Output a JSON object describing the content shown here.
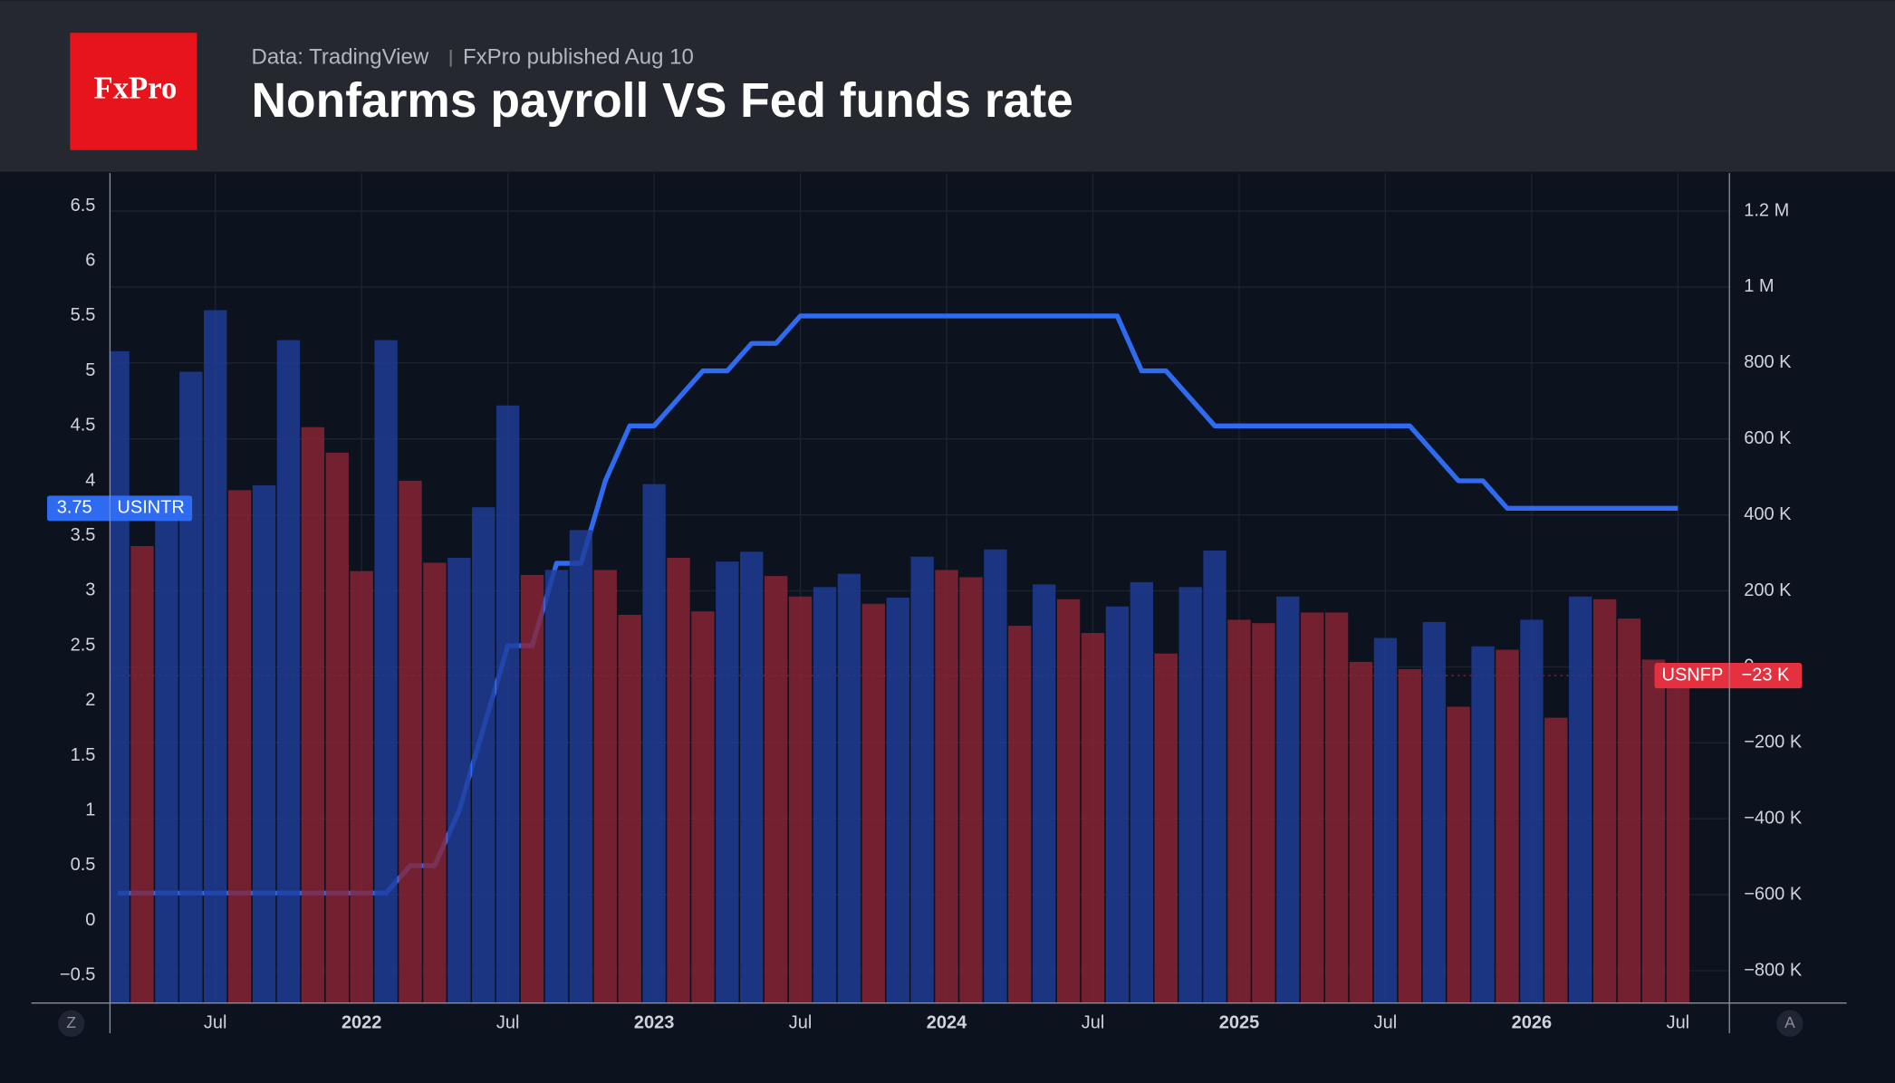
{
  "header": {
    "logo": "FxPro",
    "source": "Data: TradingView",
    "published": "FxPro published Aug 10",
    "title": "Nonfarms payroll VS Fed funds rate"
  },
  "chart_data": {
    "type": "bar",
    "categories": [
      null,
      null,
      null,
      null,
      "Jul",
      null,
      null,
      null,
      null,
      null,
      "2022",
      null,
      null,
      null,
      null,
      null,
      "Jul",
      null,
      null,
      null,
      null,
      null,
      "2023",
      null,
      null,
      null,
      null,
      null,
      "Jul",
      null,
      null,
      null,
      null,
      null,
      "2024",
      null,
      null,
      null,
      null,
      null,
      "Jul",
      null,
      null,
      null,
      null,
      null,
      "2025",
      null,
      null,
      null,
      null,
      null,
      "Jul",
      null,
      null,
      null,
      null,
      null,
      "2026",
      null,
      null,
      null,
      null,
      null,
      "Jul"
    ],
    "ylim": [
      -0.75,
      6.8
    ],
    "yticks": [
      {
        "value": -0.5,
        "label": "−0.5"
      },
      0,
      0.5,
      1,
      1.5,
      2,
      2.5,
      3,
      3.5,
      4,
      4.5,
      5,
      5.5,
      6,
      6.5
    ],
    "y2lim": [
      -885000,
      1300000
    ],
    "y2ticks": [
      {
        "value": -800000,
        "label": "−800 K"
      },
      {
        "value": -600000,
        "label": "−600 K"
      },
      {
        "value": -400000,
        "label": "−400 K"
      },
      {
        "value": -200000,
        "label": "−200 K"
      },
      0,
      {
        "value": 200000,
        "label": "200 K"
      },
      {
        "value": 400000,
        "label": "400 K"
      },
      {
        "value": 600000,
        "label": "600 K"
      },
      {
        "value": 800000,
        "label": "800 K"
      },
      {
        "value": 1000000,
        "label": "1 M"
      },
      {
        "value": 1200000,
        "label": "1.2 M"
      }
    ],
    "grid": true,
    "series": [
      {
        "name": "USNFP",
        "type": "bar",
        "axis": "y2",
        "last_value_label": "−23 K",
        "color": "#e5303f",
        "colors": [
          "#1f3d99",
          "#8a2536",
          "#1f3d99",
          "#1f3d99",
          "#1f3d99",
          "#8a2536",
          "#1f3d99",
          "#1f3d99",
          "#8a2536",
          "#8a2536",
          "#8a2536",
          "#1f3d99",
          "#8a2536",
          "#8a2536",
          "#1f3d99",
          "#1f3d99",
          "#1f3d99",
          "#8a2536",
          "#1f3d99",
          "#1f3d99",
          "#8a2536",
          "#8a2536",
          "#1f3d99",
          "#8a2536",
          "#8a2536",
          "#1f3d99",
          "#1f3d99",
          "#8a2536",
          "#8a2536",
          "#1f3d99",
          "#1f3d99",
          "#8a2536",
          "#1f3d99",
          "#1f3d99",
          "#8a2536",
          "#8a2536",
          "#1f3d99",
          "#8a2536",
          "#1f3d99",
          "#8a2536",
          "#8a2536",
          "#1f3d99",
          "#1f3d99",
          "#8a2536",
          "#1f3d99",
          "#1f3d99",
          "#8a2536",
          "#8a2536",
          "#1f3d99",
          "#8a2536",
          "#8a2536",
          "#8a2536",
          "#1f3d99",
          "#8a2536",
          "#1f3d99",
          "#8a2536",
          "#1f3d99",
          "#8a2536",
          "#1f3d99",
          "#8a2536",
          "#1f3d99",
          "#8a2536",
          "#8a2536",
          "#8a2536",
          "#8a2536"
        ],
        "values": [
          831000,
          318000,
          404000,
          777000,
          939000,
          465000,
          478000,
          860000,
          631000,
          564000,
          252000,
          860000,
          490000,
          274000,
          287000,
          420000,
          688000,
          242000,
          255000,
          360000,
          255000,
          137000,
          481000,
          287000,
          146000,
          277000,
          303000,
          239000,
          185000,
          210000,
          245000,
          166000,
          182000,
          290000,
          255000,
          236000,
          309000,
          108000,
          217000,
          178000,
          89000,
          159000,
          223000,
          35000,
          210000,
          306000,
          124000,
          115000,
          185000,
          143000,
          143000,
          13000,
          76000,
          -6000,
          118000,
          -105000,
          54000,
          45000,
          124000,
          -134000,
          185000,
          178000,
          127000,
          19000,
          -23000
        ]
      },
      {
        "name": "USINTR",
        "type": "line",
        "color": "#2f6bf0",
        "values": [
          0.25,
          0.25,
          0.25,
          0.25,
          0.25,
          0.25,
          0.25,
          0.25,
          0.25,
          0.25,
          0.25,
          0.25,
          0.5,
          0.5,
          1,
          1.75,
          2.5,
          2.5,
          3.25,
          3.25,
          4,
          4.5,
          4.5,
          4.75,
          5,
          5,
          5.25,
          5.25,
          5.5,
          5.5,
          5.5,
          5.5,
          5.5,
          5.5,
          5.5,
          5.5,
          5.5,
          5.5,
          5.5,
          5.5,
          5.5,
          5.5,
          5,
          5,
          4.75,
          4.5,
          4.5,
          4.5,
          4.5,
          4.5,
          4.5,
          4.5,
          4.5,
          4.5,
          4.25,
          4,
          4,
          3.75,
          3.75,
          3.75,
          3.75,
          3.75,
          3.75,
          3.75,
          3.75
        ]
      }
    ],
    "axis_buttons": [
      "Z",
      "A"
    ]
  }
}
